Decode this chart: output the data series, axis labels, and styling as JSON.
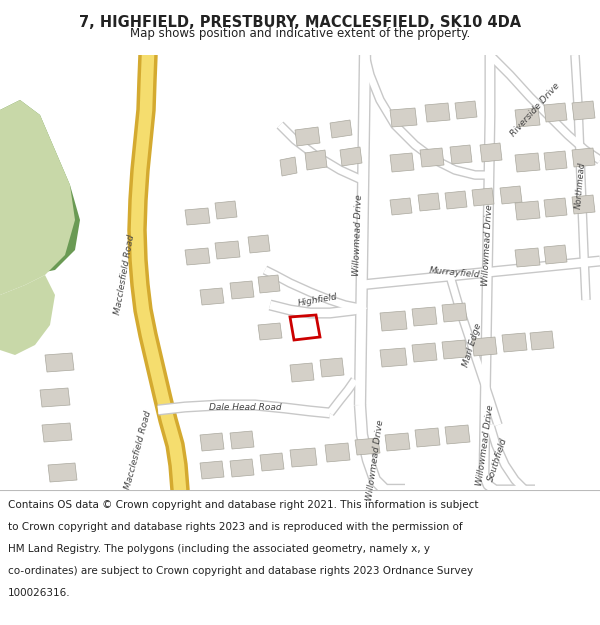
{
  "title_line1": "7, HIGHFIELD, PRESTBURY, MACCLESFIELD, SK10 4DA",
  "title_line2": "Map shows position and indicative extent of the property.",
  "map_bg": "#f0eeea",
  "road_major_fill": "#f0d060",
  "road_major_outline": "#e8c840",
  "road_minor_fill": "#ffffff",
  "road_outline_color": "#c8c8c8",
  "building_color": "#d4d0c8",
  "building_edge_color": "#aaa89e",
  "green_light": "#c8d8a8",
  "green_dark": "#6a9a54",
  "highlight_color": "#cc0000",
  "text_color": "#222222",
  "road_label_color": "#444444",
  "footer_bg": "#ffffff",
  "title_bg": "#ffffff",
  "footer_text": "Contains OS data © Crown copyright and database right 2021. This information is subject to Crown copyright and database rights 2023 and is reproduced with the permission of HM Land Registry. The polygons (including the associated geometry, namely x, y co-ordinates) are subject to Crown copyright and database rights 2023 Ordnance Survey 100026316.",
  "title_fontsize": 10.5,
  "subtitle_fontsize": 8.5,
  "footer_fontsize": 7.5,
  "road_label_fontsize": 6.5
}
